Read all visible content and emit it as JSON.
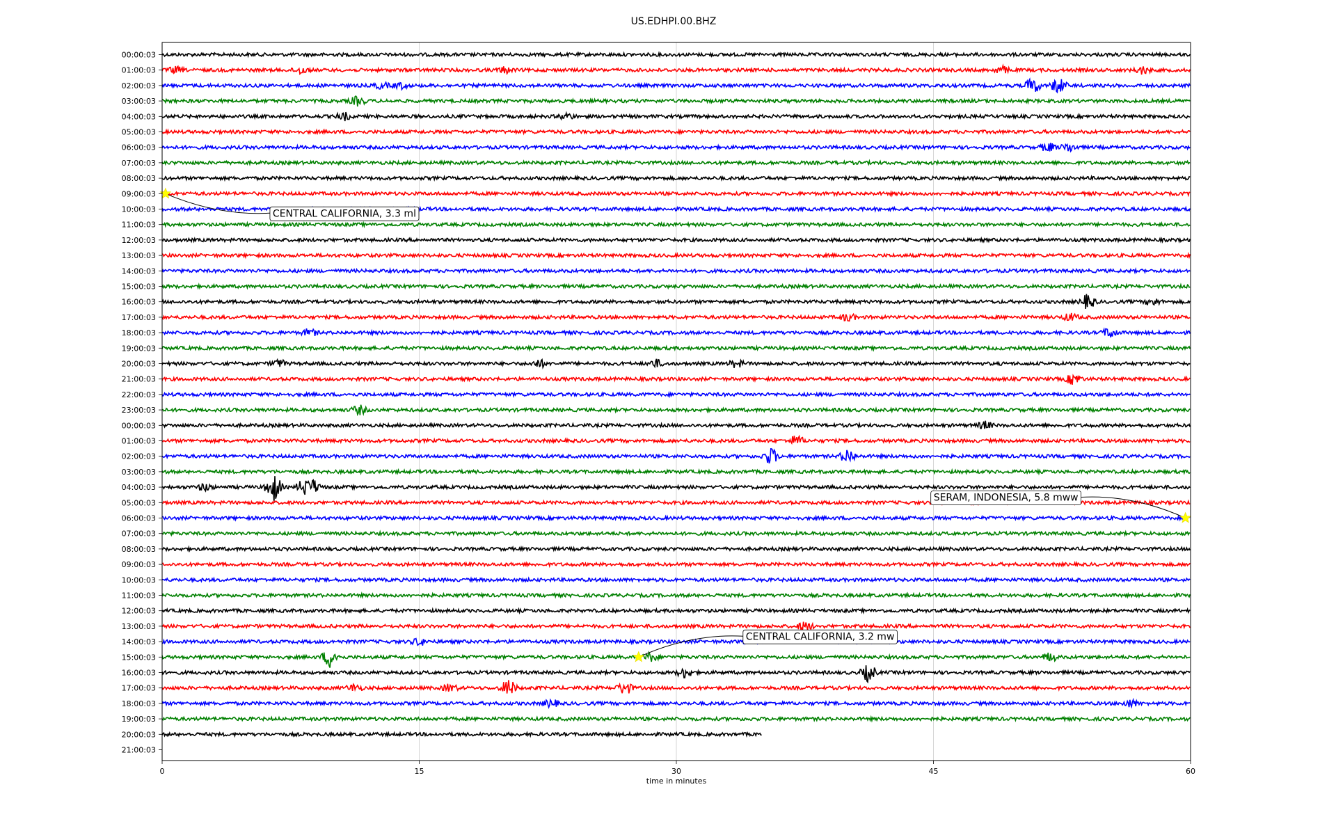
{
  "chart_data": {
    "type": "line",
    "subtype": "helicorder",
    "title": "US.EDHPI.00.BHZ",
    "xlabel": "time in minutes",
    "ylabel": "",
    "xlim": [
      0,
      60
    ],
    "x_ticks": [
      0,
      15,
      30,
      45,
      60
    ],
    "x_tick_labels": [
      "0",
      "15",
      "30",
      "45",
      "60"
    ],
    "grid": "vertical lines at x ticks",
    "trace_colors": [
      "#000000",
      "#ff0000",
      "#0000ff",
      "#008000"
    ],
    "rows": [
      "00:00:03",
      "01:00:03",
      "02:00:03",
      "03:00:03",
      "04:00:03",
      "05:00:03",
      "06:00:03",
      "07:00:03",
      "08:00:03",
      "09:00:03",
      "10:00:03",
      "11:00:03",
      "12:00:03",
      "13:00:03",
      "14:00:03",
      "15:00:03",
      "16:00:03",
      "17:00:03",
      "18:00:03",
      "19:00:03",
      "20:00:03",
      "21:00:03",
      "22:00:03",
      "23:00:03",
      "00:00:03",
      "01:00:03",
      "02:00:03",
      "03:00:03",
      "04:00:03",
      "05:00:03",
      "06:00:03",
      "07:00:03",
      "08:00:03",
      "09:00:03",
      "10:00:03",
      "11:00:03",
      "12:00:03",
      "13:00:03",
      "14:00:03",
      "15:00:03",
      "16:00:03",
      "17:00:03",
      "18:00:03",
      "19:00:03",
      "20:00:03",
      "21:00:03"
    ],
    "last_trace_end_minute": 35,
    "events": [
      {
        "row": 9,
        "minute": 0.2,
        "label": "CENTRAL CALIFORNIA, 3.3 ml"
      },
      {
        "row": 30,
        "minute": 59.7,
        "label": "SERAM, INDONESIA, 5.8 mww"
      },
      {
        "row": 39,
        "minute": 27.8,
        "label": "CENTRAL CALIFORNIA, 3.2 mw"
      }
    ],
    "bursts": [
      {
        "row": 1,
        "minute": 0.8,
        "amp": 4
      },
      {
        "row": 1,
        "minute": 8.1,
        "amp": 5
      },
      {
        "row": 1,
        "minute": 20,
        "amp": 4
      },
      {
        "row": 1,
        "minute": 49,
        "amp": 5
      },
      {
        "row": 1,
        "minute": 57.2,
        "amp": 5
      },
      {
        "row": 2,
        "minute": 12.8,
        "amp": 4
      },
      {
        "row": 2,
        "minute": 13.9,
        "amp": 4
      },
      {
        "row": 2,
        "minute": 50.8,
        "amp": 11
      },
      {
        "row": 2,
        "minute": 52.3,
        "amp": 11
      },
      {
        "row": 3,
        "minute": 11.4,
        "amp": 6
      },
      {
        "row": 4,
        "minute": 10.6,
        "amp": 5
      },
      {
        "row": 4,
        "minute": 23.6,
        "amp": 4
      },
      {
        "row": 6,
        "minute": 51.7,
        "amp": 6
      },
      {
        "row": 6,
        "minute": 52.9,
        "amp": 6
      },
      {
        "row": 16,
        "minute": 54,
        "amp": 10
      },
      {
        "row": 16,
        "minute": 57.8,
        "amp": 5
      },
      {
        "row": 17,
        "minute": 40,
        "amp": 5
      },
      {
        "row": 17,
        "minute": 53,
        "amp": 5
      },
      {
        "row": 18,
        "minute": 8.6,
        "amp": 5
      },
      {
        "row": 18,
        "minute": 55.3,
        "amp": 7
      },
      {
        "row": 20,
        "minute": 6.8,
        "amp": 5
      },
      {
        "row": 20,
        "minute": 22,
        "amp": 5
      },
      {
        "row": 20,
        "minute": 28.8,
        "amp": 5
      },
      {
        "row": 20,
        "minute": 33.5,
        "amp": 5
      },
      {
        "row": 21,
        "minute": 53.2,
        "amp": 8
      },
      {
        "row": 23,
        "minute": 11.5,
        "amp": 6
      },
      {
        "row": 24,
        "minute": 48,
        "amp": 5
      },
      {
        "row": 25,
        "minute": 37,
        "amp": 7
      },
      {
        "row": 26,
        "minute": 35.5,
        "amp": 12
      },
      {
        "row": 26,
        "minute": 40,
        "amp": 10
      },
      {
        "row": 28,
        "minute": 2.5,
        "amp": 5
      },
      {
        "row": 28,
        "minute": 6.5,
        "amp": 22
      },
      {
        "row": 28,
        "minute": 8.3,
        "amp": 12
      },
      {
        "row": 28,
        "minute": 8.8,
        "amp": 10
      },
      {
        "row": 37,
        "minute": 37.5,
        "amp": 6
      },
      {
        "row": 38,
        "minute": 15,
        "amp": 5
      },
      {
        "row": 39,
        "minute": 9.8,
        "amp": 14
      },
      {
        "row": 39,
        "minute": 28.5,
        "amp": 6
      },
      {
        "row": 39,
        "minute": 51.8,
        "amp": 6
      },
      {
        "row": 40,
        "minute": 30.5,
        "amp": 7
      },
      {
        "row": 40,
        "minute": 41.2,
        "amp": 12
      },
      {
        "row": 41,
        "minute": 11.2,
        "amp": 5
      },
      {
        "row": 41,
        "minute": 16.8,
        "amp": 5
      },
      {
        "row": 41,
        "minute": 20.2,
        "amp": 12
      },
      {
        "row": 41,
        "minute": 27,
        "amp": 9
      },
      {
        "row": 42,
        "minute": 22.7,
        "amp": 5
      },
      {
        "row": 42,
        "minute": 56.5,
        "amp": 5
      }
    ]
  }
}
